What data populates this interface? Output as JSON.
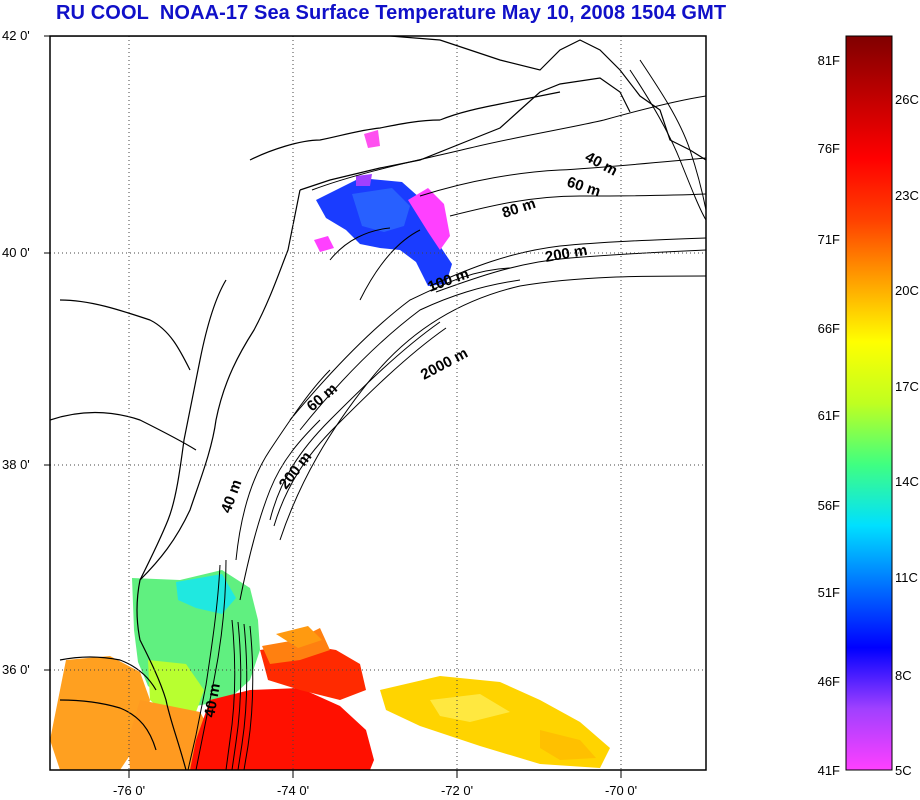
{
  "title": "RU COOL  NOAA-17 Sea Surface Temperature May 10, 2008 1504 GMT",
  "map": {
    "lon_range": [
      -77,
      -69
    ],
    "lat_range": [
      35,
      42
    ],
    "x_ticks": [
      {
        "lon": -76,
        "label": "-76 0'"
      },
      {
        "lon": -74,
        "label": "-74 0'"
      },
      {
        "lon": -72,
        "label": "-72 0'"
      },
      {
        "lon": -70,
        "label": "-70 0'"
      }
    ],
    "y_ticks": [
      {
        "lat": 42,
        "label": "42 0'"
      },
      {
        "lat": 40,
        "label": "40 0'"
      },
      {
        "lat": 38,
        "label": "38 0'"
      },
      {
        "lat": 36,
        "label": "36 0'"
      }
    ],
    "gridlines": "dotted",
    "land_color": "#ffffff",
    "coastline_color": "#000000",
    "isobath_labels": [
      {
        "label": "40 m"
      },
      {
        "label": "60 m"
      },
      {
        "label": "80 m"
      },
      {
        "label": "200 m"
      },
      {
        "label": "100 m"
      },
      {
        "label": "2000 m"
      },
      {
        "label": "60 m"
      },
      {
        "label": "200 m"
      },
      {
        "label": "40 m"
      },
      {
        "label": "40 m"
      }
    ]
  },
  "colorbar": {
    "range_celsius": [
      5,
      28
    ],
    "range_fahrenheit": [
      41,
      82
    ],
    "colors_bottom_to_top": [
      "#ff40ff",
      "#a040ff",
      "#0000ff",
      "#0070ff",
      "#00e0ff",
      "#40ff80",
      "#c0ff20",
      "#ffff00",
      "#ffa000",
      "#ff4000",
      "#ff0000",
      "#c00000",
      "#800000"
    ],
    "fahrenheit_labels": [
      "81F",
      "76F",
      "71F",
      "66F",
      "61F",
      "56F",
      "51F",
      "46F",
      "41F"
    ],
    "celsius_labels": [
      "26C",
      "23C",
      "20C",
      "17C",
      "14C",
      "11C",
      "8C",
      "5C"
    ]
  }
}
